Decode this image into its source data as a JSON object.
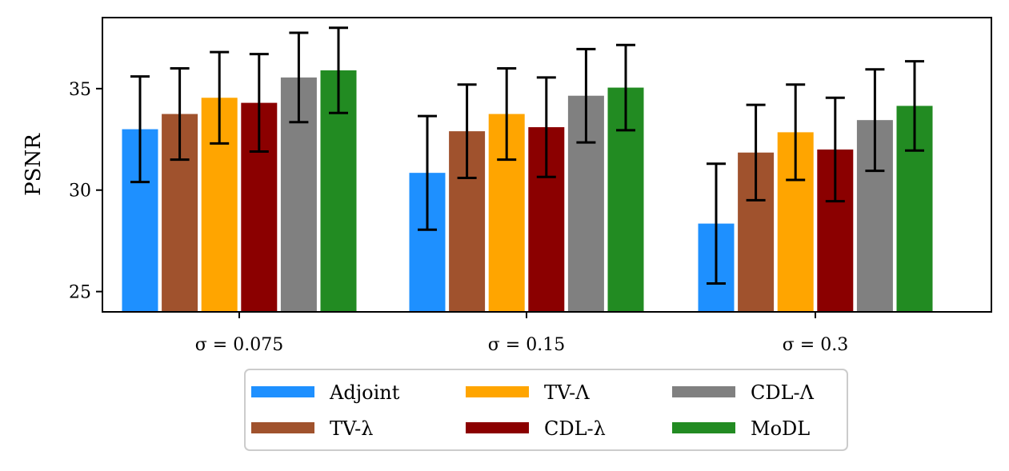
{
  "chart_data": {
    "type": "bar",
    "title": "",
    "xlabel": "",
    "ylabel": "PSNR",
    "ylim": [
      24.0,
      38.5
    ],
    "yticks": [
      25,
      30,
      35
    ],
    "categories": [
      "σ = 0.075",
      "σ = 0.15",
      "σ = 0.3"
    ],
    "series": [
      {
        "name": "Adjoint",
        "color": "#1e90ff",
        "values": [
          33.0,
          30.85,
          28.35
        ],
        "err": [
          2.6,
          2.8,
          2.95
        ]
      },
      {
        "name": "TV-λ",
        "color": "#a0522d",
        "values": [
          33.75,
          32.9,
          31.85
        ],
        "err": [
          2.25,
          2.3,
          2.35
        ]
      },
      {
        "name": "TV-Λ",
        "color": "#ffa500",
        "values": [
          34.55,
          33.75,
          32.85
        ],
        "err": [
          2.25,
          2.25,
          2.35
        ]
      },
      {
        "name": "CDL-λ",
        "color": "#8b0000",
        "values": [
          34.3,
          33.1,
          32.0
        ],
        "err": [
          2.4,
          2.45,
          2.55
        ]
      },
      {
        "name": "CDL-Λ",
        "color": "#808080",
        "values": [
          35.55,
          34.65,
          33.45
        ],
        "err": [
          2.2,
          2.3,
          2.5
        ]
      },
      {
        "name": "MoDL",
        "color": "#228b22",
        "values": [
          35.9,
          35.05,
          34.15
        ],
        "err": [
          2.1,
          2.1,
          2.2
        ]
      }
    ],
    "legend": {
      "position": "bottom-center",
      "columns": 3,
      "order": [
        "Adjoint",
        "TV-λ",
        "TV-Λ",
        "CDL-λ",
        "CDL-Λ",
        "MoDL"
      ]
    },
    "grid": false
  }
}
